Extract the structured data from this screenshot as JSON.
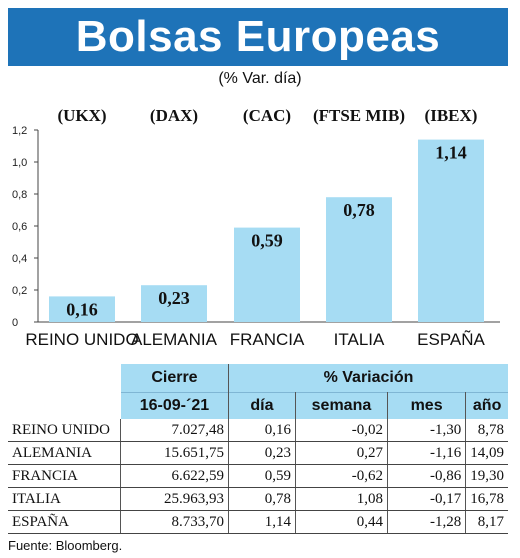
{
  "header": {
    "title": "Bolsas Europeas",
    "subtitle": "(% Var. día)"
  },
  "chart_data": {
    "type": "bar",
    "categories": [
      "REINO UNIDO",
      "ALEMANIA",
      "FRANCIA",
      "ITALIA",
      "ESPAÑA"
    ],
    "index_codes": [
      "(UKX)",
      "(DAX)",
      "(CAC)",
      "(FTSE MIB)",
      "(IBEX)"
    ],
    "values": [
      0.16,
      0.23,
      0.59,
      0.78,
      1.14
    ],
    "value_labels": [
      "0,16",
      "0,23",
      "0,59",
      "0,78",
      "1,14"
    ],
    "yticks": [
      "0",
      "0,2",
      "0,4",
      "0,6",
      "0,8",
      "1,0",
      "1,2"
    ],
    "ylim": [
      0,
      1.2
    ],
    "bar_color": "#a6dcf3",
    "grid": false
  },
  "table": {
    "header_cierre": "Cierre",
    "header_variacion": "% Variación",
    "date": "16-09-´21",
    "columns": [
      "día",
      "semana",
      "mes",
      "año"
    ],
    "rows": [
      {
        "name": "REINO UNIDO",
        "cierre": "7.027,48",
        "dia": "0,16",
        "semana": "-0,02",
        "mes": "-1,30",
        "ano": "8,78"
      },
      {
        "name": "ALEMANIA",
        "cierre": "15.651,75",
        "dia": "0,23",
        "semana": "0,27",
        "mes": "-1,16",
        "ano": "14,09"
      },
      {
        "name": "FRANCIA",
        "cierre": "6.622,59",
        "dia": "0,59",
        "semana": "-0,62",
        "mes": "-0,86",
        "ano": "19,30"
      },
      {
        "name": "ITALIA",
        "cierre": "25.963,93",
        "dia": "0,78",
        "semana": "1,08",
        "mes": "-0,17",
        "ano": "16,78"
      },
      {
        "name": "ESPAÑA",
        "cierre": "8.733,70",
        "dia": "1,14",
        "semana": "0,44",
        "mes": "-1,28",
        "ano": "8,17"
      }
    ]
  },
  "source": "Fuente: Bloomberg.",
  "colors": {
    "banner": "#1e73b8",
    "accent": "#a6dcf3"
  }
}
